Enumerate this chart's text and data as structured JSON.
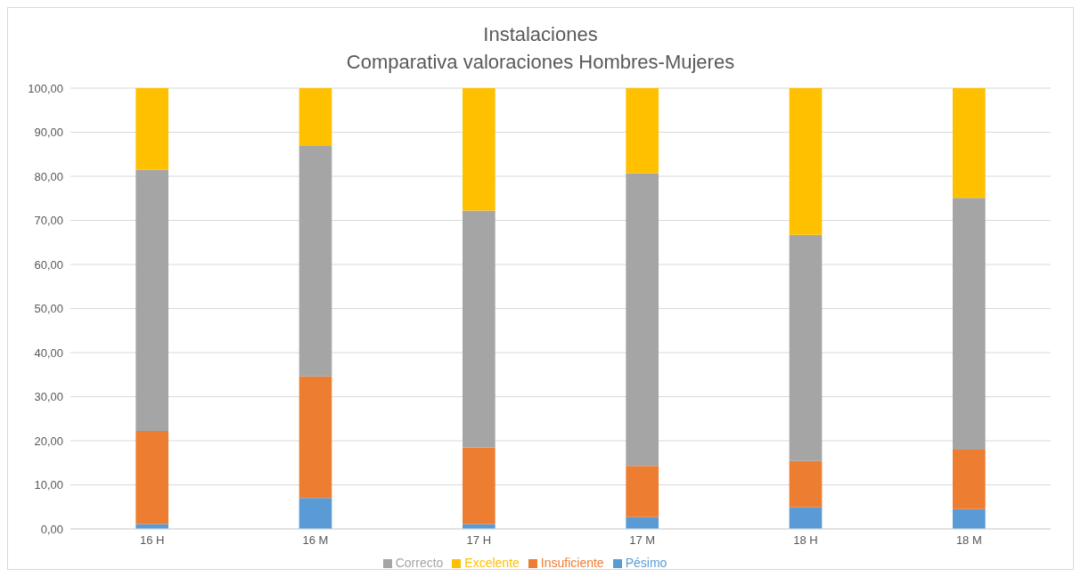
{
  "chart_data": {
    "type": "bar",
    "title": "Instalaciones",
    "subtitle": "Comparativa valoraciones Hombres-Mujeres",
    "categories": [
      "16 H",
      "16 M",
      "17 H",
      "17 M",
      "18 H",
      "18 M"
    ],
    "stacked": true,
    "series": [
      {
        "name": "Pésimo",
        "color": "#5b9bd5",
        "values": [
          1.1,
          7.0,
          1.1,
          2.7,
          4.9,
          4.5
        ]
      },
      {
        "name": "Insuficiente",
        "color": "#ed7d31",
        "values": [
          21.1,
          27.6,
          17.4,
          11.6,
          10.5,
          13.5
        ]
      },
      {
        "name": "Correcto",
        "color": "#a5a5a5",
        "values": [
          59.3,
          52.4,
          53.7,
          66.4,
          51.3,
          57.1
        ]
      },
      {
        "name": "Excelente",
        "color": "#ffc000",
        "values": [
          18.5,
          13.0,
          27.8,
          19.3,
          33.3,
          24.9
        ]
      }
    ],
    "ylim": [
      0,
      100
    ],
    "yticks": [
      {
        "value": 0,
        "label": "0,00"
      },
      {
        "value": 10,
        "label": "10,00"
      },
      {
        "value": 20,
        "label": "20,00"
      },
      {
        "value": 30,
        "label": "30,00"
      },
      {
        "value": 40,
        "label": "40,00"
      },
      {
        "value": 50,
        "label": "50,00"
      },
      {
        "value": 60,
        "label": "60,00"
      },
      {
        "value": 70,
        "label": "70,00"
      },
      {
        "value": 80,
        "label": "80,00"
      },
      {
        "value": 90,
        "label": "90,00"
      },
      {
        "value": 100,
        "label": "100,00"
      }
    ],
    "grid": "y",
    "legend": "bottom"
  }
}
